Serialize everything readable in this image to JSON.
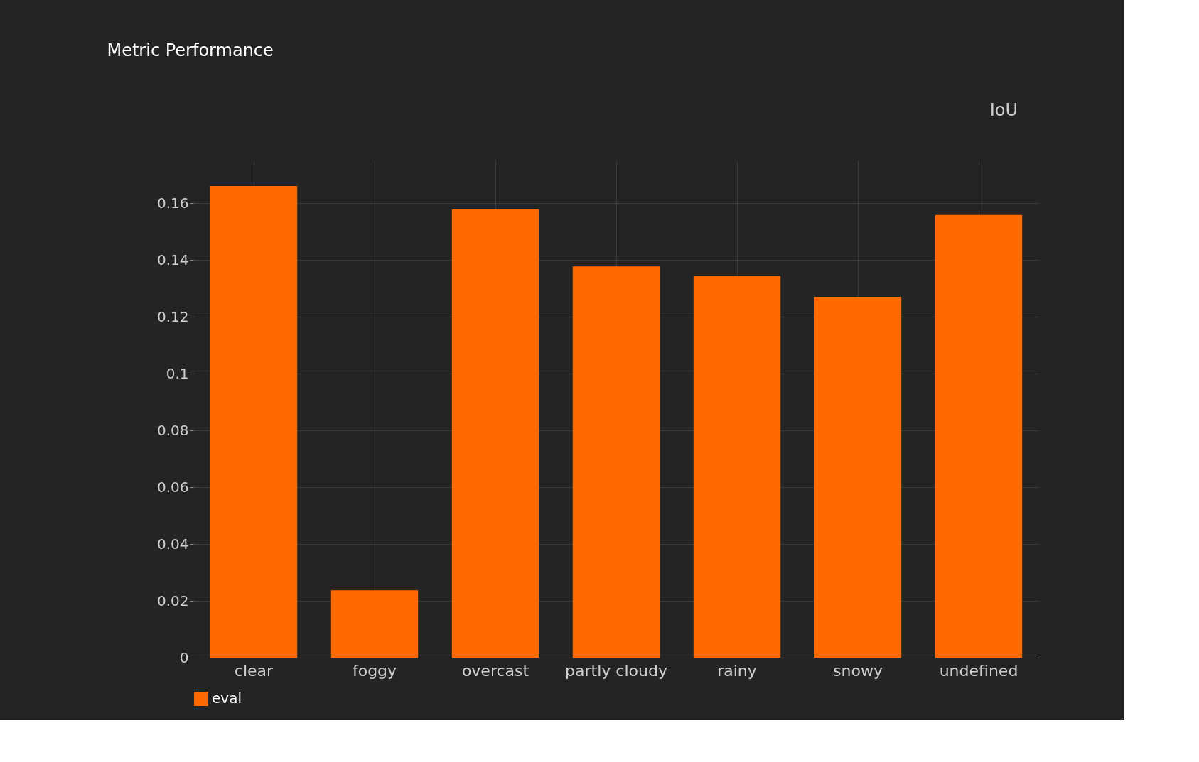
{
  "chart_data": {
    "type": "bar",
    "title": "Metric Performance",
    "annotations": [
      "IoU"
    ],
    "categories": [
      "clear",
      "foggy",
      "overcast",
      "partly cloudy",
      "rainy",
      "snowy",
      "undefined"
    ],
    "series": [
      {
        "name": "eval",
        "color": "#ff6a00",
        "values": [
          0.166,
          0.0237,
          0.1578,
          0.1377,
          0.1343,
          0.127,
          0.1558
        ]
      }
    ],
    "ylim": [
      0,
      0.175
    ],
    "yticks": [
      0,
      0.02,
      0.04,
      0.06,
      0.08,
      0.1,
      0.12,
      0.14,
      0.16
    ],
    "grid": true,
    "legend": "bottom"
  }
}
